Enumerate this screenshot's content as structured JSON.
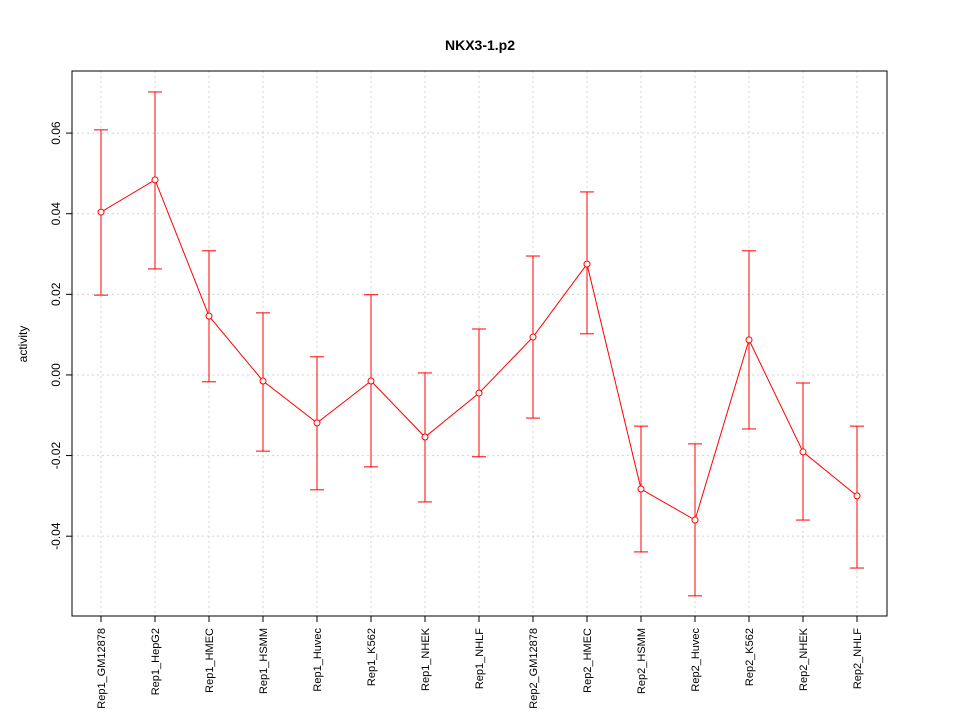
{
  "chart_data": {
    "type": "line",
    "title": "NKX3-1.p2",
    "xlabel": "",
    "ylabel": "activity",
    "ylim": [
      -0.0598,
      0.0754
    ],
    "yticks": [
      -0.04,
      -0.02,
      0.0,
      0.02,
      0.04,
      0.06
    ],
    "ytick_labels": [
      "-0.04",
      "-0.02",
      "0.00",
      "0.02",
      "0.04",
      "0.06"
    ],
    "grid": true,
    "color": "#ff0000",
    "categories": [
      "Rep1_GM12878",
      "Rep1_HepG2",
      "Rep1_HMEC",
      "Rep1_HSMM",
      "Rep1_Huvec",
      "Rep1_K562",
      "Rep1_NHEK",
      "Rep1_NHLF",
      "Rep2_GM12878",
      "Rep2_HMEC",
      "Rep2_HSMM",
      "Rep2_Huvec",
      "Rep2_K562",
      "Rep2_NHEK",
      "Rep2_NHLF"
    ],
    "values": [
      0.0404,
      0.0484,
      0.0146,
      -0.0015,
      -0.0119,
      -0.0015,
      -0.0154,
      -0.0045,
      0.0094,
      0.0275,
      -0.0283,
      -0.036,
      0.0087,
      -0.0191,
      -0.03
    ],
    "upper": [
      0.0608,
      0.0702,
      0.0308,
      0.0154,
      0.0045,
      0.0199,
      0.0005,
      0.0114,
      0.0295,
      0.0454,
      -0.0127,
      -0.0171,
      0.0308,
      -0.002,
      -0.0127
    ],
    "lower": [
      0.0198,
      0.0263,
      -0.0017,
      -0.0189,
      -0.0285,
      -0.0228,
      -0.0315,
      -0.0203,
      -0.0107,
      0.0102,
      -0.0439,
      -0.0548,
      -0.0134,
      -0.036,
      -0.0479
    ]
  }
}
